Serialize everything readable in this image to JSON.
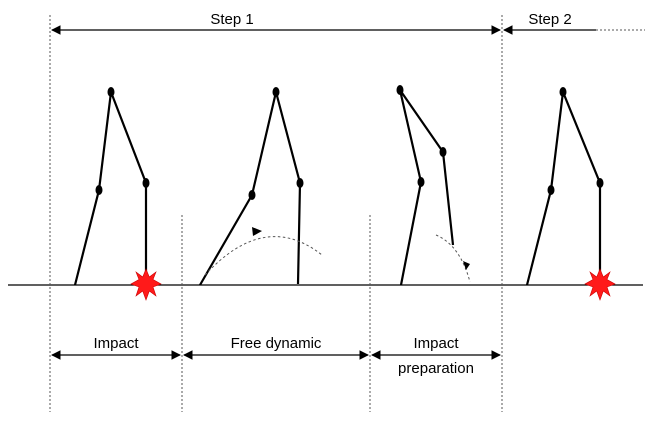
{
  "diagram": {
    "step_labels": {
      "step1": "Step 1",
      "step2": "Step 2"
    },
    "phase_labels": {
      "impact": "Impact",
      "free_dynamic": "Free dynamic",
      "impact_preparation_line1": "Impact",
      "impact_preparation_line2": "preparation"
    },
    "colors": {
      "line": "#000000",
      "impact_marker": "#ff1a1a",
      "guide": "#555555"
    }
  }
}
